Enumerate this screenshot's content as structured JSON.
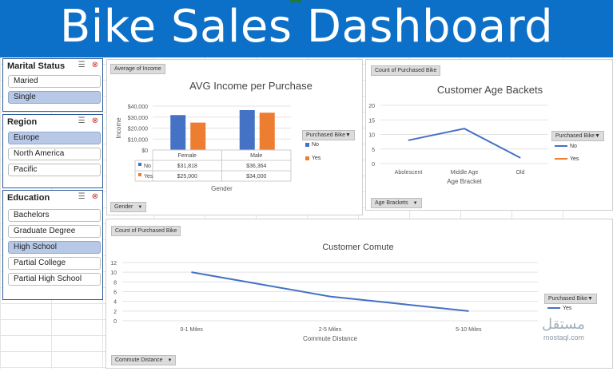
{
  "banner": {
    "title": "Bike Sales Dashboard"
  },
  "slicers": {
    "marital": {
      "title": "Marital Status",
      "items": [
        {
          "label": "Maried",
          "selected": false
        },
        {
          "label": "Single",
          "selected": true
        }
      ]
    },
    "region": {
      "title": "Region",
      "items": [
        {
          "label": "Europe",
          "selected": true
        },
        {
          "label": "North America",
          "selected": false
        },
        {
          "label": "Pacific",
          "selected": false
        }
      ]
    },
    "education": {
      "title": "Education",
      "items": [
        {
          "label": "Bachelors",
          "selected": false
        },
        {
          "label": "Graduate Degree",
          "selected": false
        },
        {
          "label": "High School",
          "selected": true
        },
        {
          "label": "Partial College",
          "selected": false
        },
        {
          "label": "Partial High School",
          "selected": false
        }
      ]
    }
  },
  "income_panel": {
    "field_button": "Average of Income",
    "axis_field_button": "Gender",
    "legend_button": "Purchased Bike",
    "legend": [
      {
        "label": "No",
        "color": "#4472c4"
      },
      {
        "label": "Yes",
        "color": "#ed7d31"
      }
    ],
    "table_rows": [
      {
        "label": "No",
        "values": [
          "$31,818",
          "$36,364"
        ]
      },
      {
        "label": "Yes",
        "values": [
          "$25,000",
          "$34,000"
        ]
      }
    ]
  },
  "age_panel": {
    "field_button": "Count of Purchased Bike",
    "axis_field_button": "Age Brackets",
    "legend_button": "Purchased Bike",
    "legend": [
      {
        "label": "No",
        "color": "#4472c4"
      },
      {
        "label": "Yes",
        "color": "#ed7d31"
      }
    ]
  },
  "commute_panel": {
    "field_button": "Count of Purchased Bike",
    "axis_field_button": "Commute Distance",
    "legend_button": "Purchased Bike",
    "legend": [
      {
        "label": "Yes",
        "color": "#4472c4"
      }
    ]
  },
  "chart_data": [
    {
      "id": "income",
      "type": "bar",
      "title": "AVG Income per Purchase",
      "xlabel": "Gender",
      "ylabel": "Income",
      "categories": [
        "Female",
        "Male"
      ],
      "series": [
        {
          "name": "No",
          "color": "#4472c4",
          "values": [
            31818,
            36364
          ]
        },
        {
          "name": "Yes",
          "color": "#ed7d31",
          "values": [
            25000,
            34000
          ]
        }
      ],
      "ylim": [
        0,
        40000
      ],
      "yticks": [
        "$0",
        "$10,000",
        "$20,000",
        "$30,000",
        "$40,000"
      ],
      "ytick_values": [
        0,
        10000,
        20000,
        30000,
        40000
      ]
    },
    {
      "id": "age",
      "type": "line",
      "title": "Customer Age Backets",
      "xlabel": "Age Bracket",
      "ylabel": "",
      "categories": [
        "Abolescent",
        "Middle Age",
        "Old"
      ],
      "series": [
        {
          "name": "No",
          "color": "#4472c4",
          "values": [
            8,
            12,
            2
          ]
        },
        {
          "name": "Yes",
          "color": "#ed7d31",
          "values": [
            0,
            0,
            0
          ]
        }
      ],
      "ylim": [
        0,
        20
      ],
      "yticks": [
        "0",
        "5",
        "10",
        "15",
        "20"
      ],
      "ytick_values": [
        0,
        5,
        10,
        15,
        20
      ]
    },
    {
      "id": "commute",
      "type": "line",
      "title": "Customer Comute",
      "xlabel": "Commute Distance",
      "ylabel": "",
      "categories": [
        "0-1 Miles",
        "2-5 Miles",
        "5-10 Miles"
      ],
      "series": [
        {
          "name": "Yes",
          "color": "#4472c4",
          "values": [
            10,
            5,
            2
          ]
        }
      ],
      "ylim": [
        0,
        12
      ],
      "yticks": [
        "0",
        "2",
        "4",
        "6",
        "8",
        "10",
        "12"
      ],
      "ytick_values": [
        0,
        2,
        4,
        6,
        8,
        10,
        12
      ]
    }
  ],
  "watermark": {
    "text": "mostaql.com",
    "arabic": "مستقل"
  }
}
